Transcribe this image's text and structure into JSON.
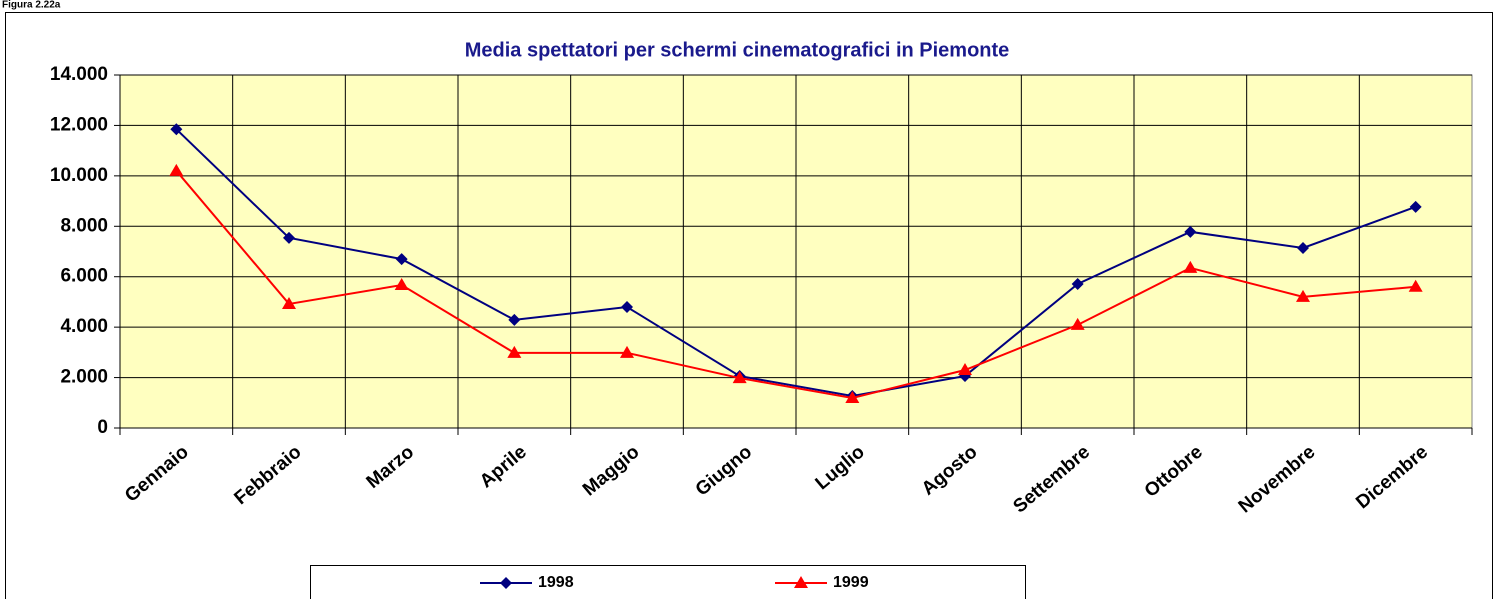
{
  "figure_label": "Figura 2.22a",
  "chart_data": {
    "type": "line",
    "title": "Media spettatori per schermi cinematografici in Piemonte",
    "categories": [
      "Gennaio",
      "Febbraio",
      "Marzo",
      "Aprile",
      "Maggio",
      "Giugno",
      "Luglio",
      "Agosto",
      "Settembre",
      "Ottobre",
      "Novembre",
      "Dicembre"
    ],
    "series": [
      {
        "name": "1998",
        "color": "#000080",
        "marker": "diamond",
        "values": [
          11850,
          7540,
          6700,
          4290,
          4800,
          2060,
          1270,
          2060,
          5710,
          7780,
          7140,
          8770
        ]
      },
      {
        "name": "1999",
        "color": "#ff0000",
        "marker": "triangle",
        "values": [
          10200,
          4920,
          5670,
          2980,
          2980,
          1980,
          1190,
          2300,
          4090,
          6350,
          5200,
          5600
        ]
      }
    ],
    "ylim": [
      0,
      14000
    ],
    "yticks": [
      0,
      {
        "value": 2000,
        "label": "2.000"
      },
      {
        "value": 4000,
        "label": "4.000"
      },
      {
        "value": 6000,
        "label": "6.000"
      },
      {
        "value": 8000,
        "label": "8.000"
      },
      {
        "value": 10000,
        "label": "10.000"
      },
      {
        "value": 12000,
        "label": "12.000"
      },
      {
        "value": 14000,
        "label": "14.000"
      }
    ],
    "grid": true,
    "legend": "bottom",
    "plot_background": "#ffffc0"
  }
}
